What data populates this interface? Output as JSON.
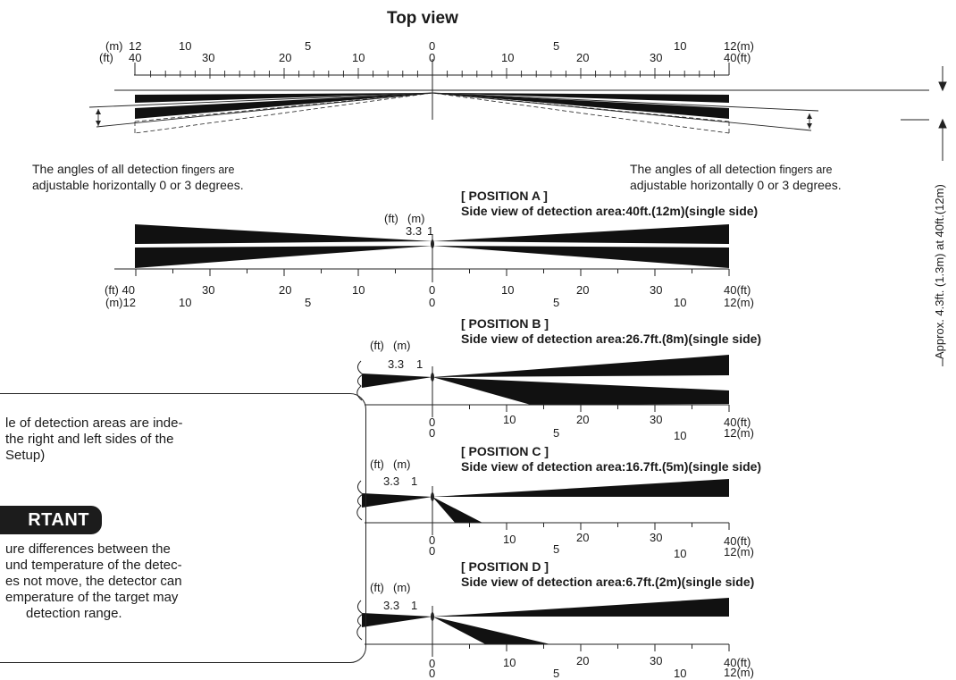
{
  "title": "Top view",
  "top_scale": {
    "m_unit": "(m)",
    "ft_unit": "(ft)",
    "m_left": [
      "12",
      "10",
      "5",
      "0"
    ],
    "ft_left": [
      "40",
      "30",
      "20",
      "10",
      "0"
    ],
    "m_right": [
      "5",
      "10",
      "12(m)"
    ],
    "ft_right": [
      "10",
      "20",
      "30",
      "40(ft)"
    ]
  },
  "captions": {
    "left_line1_main": "The angles of all detection",
    "left_line1_small": "fingers are",
    "left_line2": "adjustable horizontally 0 or 3 degrees.",
    "right_line1_main": "The angles of all detection",
    "right_line1_small": "fingers are",
    "right_line2": "adjustable horizontally 0 or 3 degrees."
  },
  "vertical_label": "Approx. 4.3ft. (1.3m) at 40ft.(12m)",
  "height_labels": {
    "ft_unit": "(ft)",
    "m_unit": "(m)",
    "ft": "3.3",
    "m": "1"
  },
  "position_a": {
    "name": "[ POSITION A ]",
    "desc": "Side view of detection area:40ft.(12m)(single side)",
    "ft_row": [
      "(ft) 40",
      "30",
      "20",
      "10",
      "0",
      "10",
      "20",
      "30",
      "40(ft)"
    ],
    "m_row": [
      "(m)12",
      "10",
      "5",
      "0",
      "5",
      "10",
      "12(m)"
    ]
  },
  "positions": [
    {
      "name": "[ POSITION B ]",
      "desc": "Side view of detection area:26.7ft.(8m)(single side)"
    },
    {
      "name": "[ POSITION C ]",
      "desc": "Side view of detection area:16.7ft.(5m)(single side)"
    },
    {
      "name": "[ POSITION D ]",
      "desc": "Side view of detection area:6.7ft.(2m)(single side)"
    }
  ],
  "side_scale": {
    "ft": [
      "0",
      "10",
      "20",
      "30",
      "40(ft)"
    ],
    "m": [
      "0",
      "5",
      "10",
      "12(m)"
    ]
  },
  "note": {
    "line1": "le of detection areas are inde-",
    "line2": "the right and left sides of the",
    "line3": "Setup)",
    "important": "RTANT",
    "body1": "ure differences  between the",
    "body2": "und temperature of the detec-",
    "body3": "es not move, the detector can",
    "body4": "emperature of the target may",
    "body5": "detection range."
  }
}
